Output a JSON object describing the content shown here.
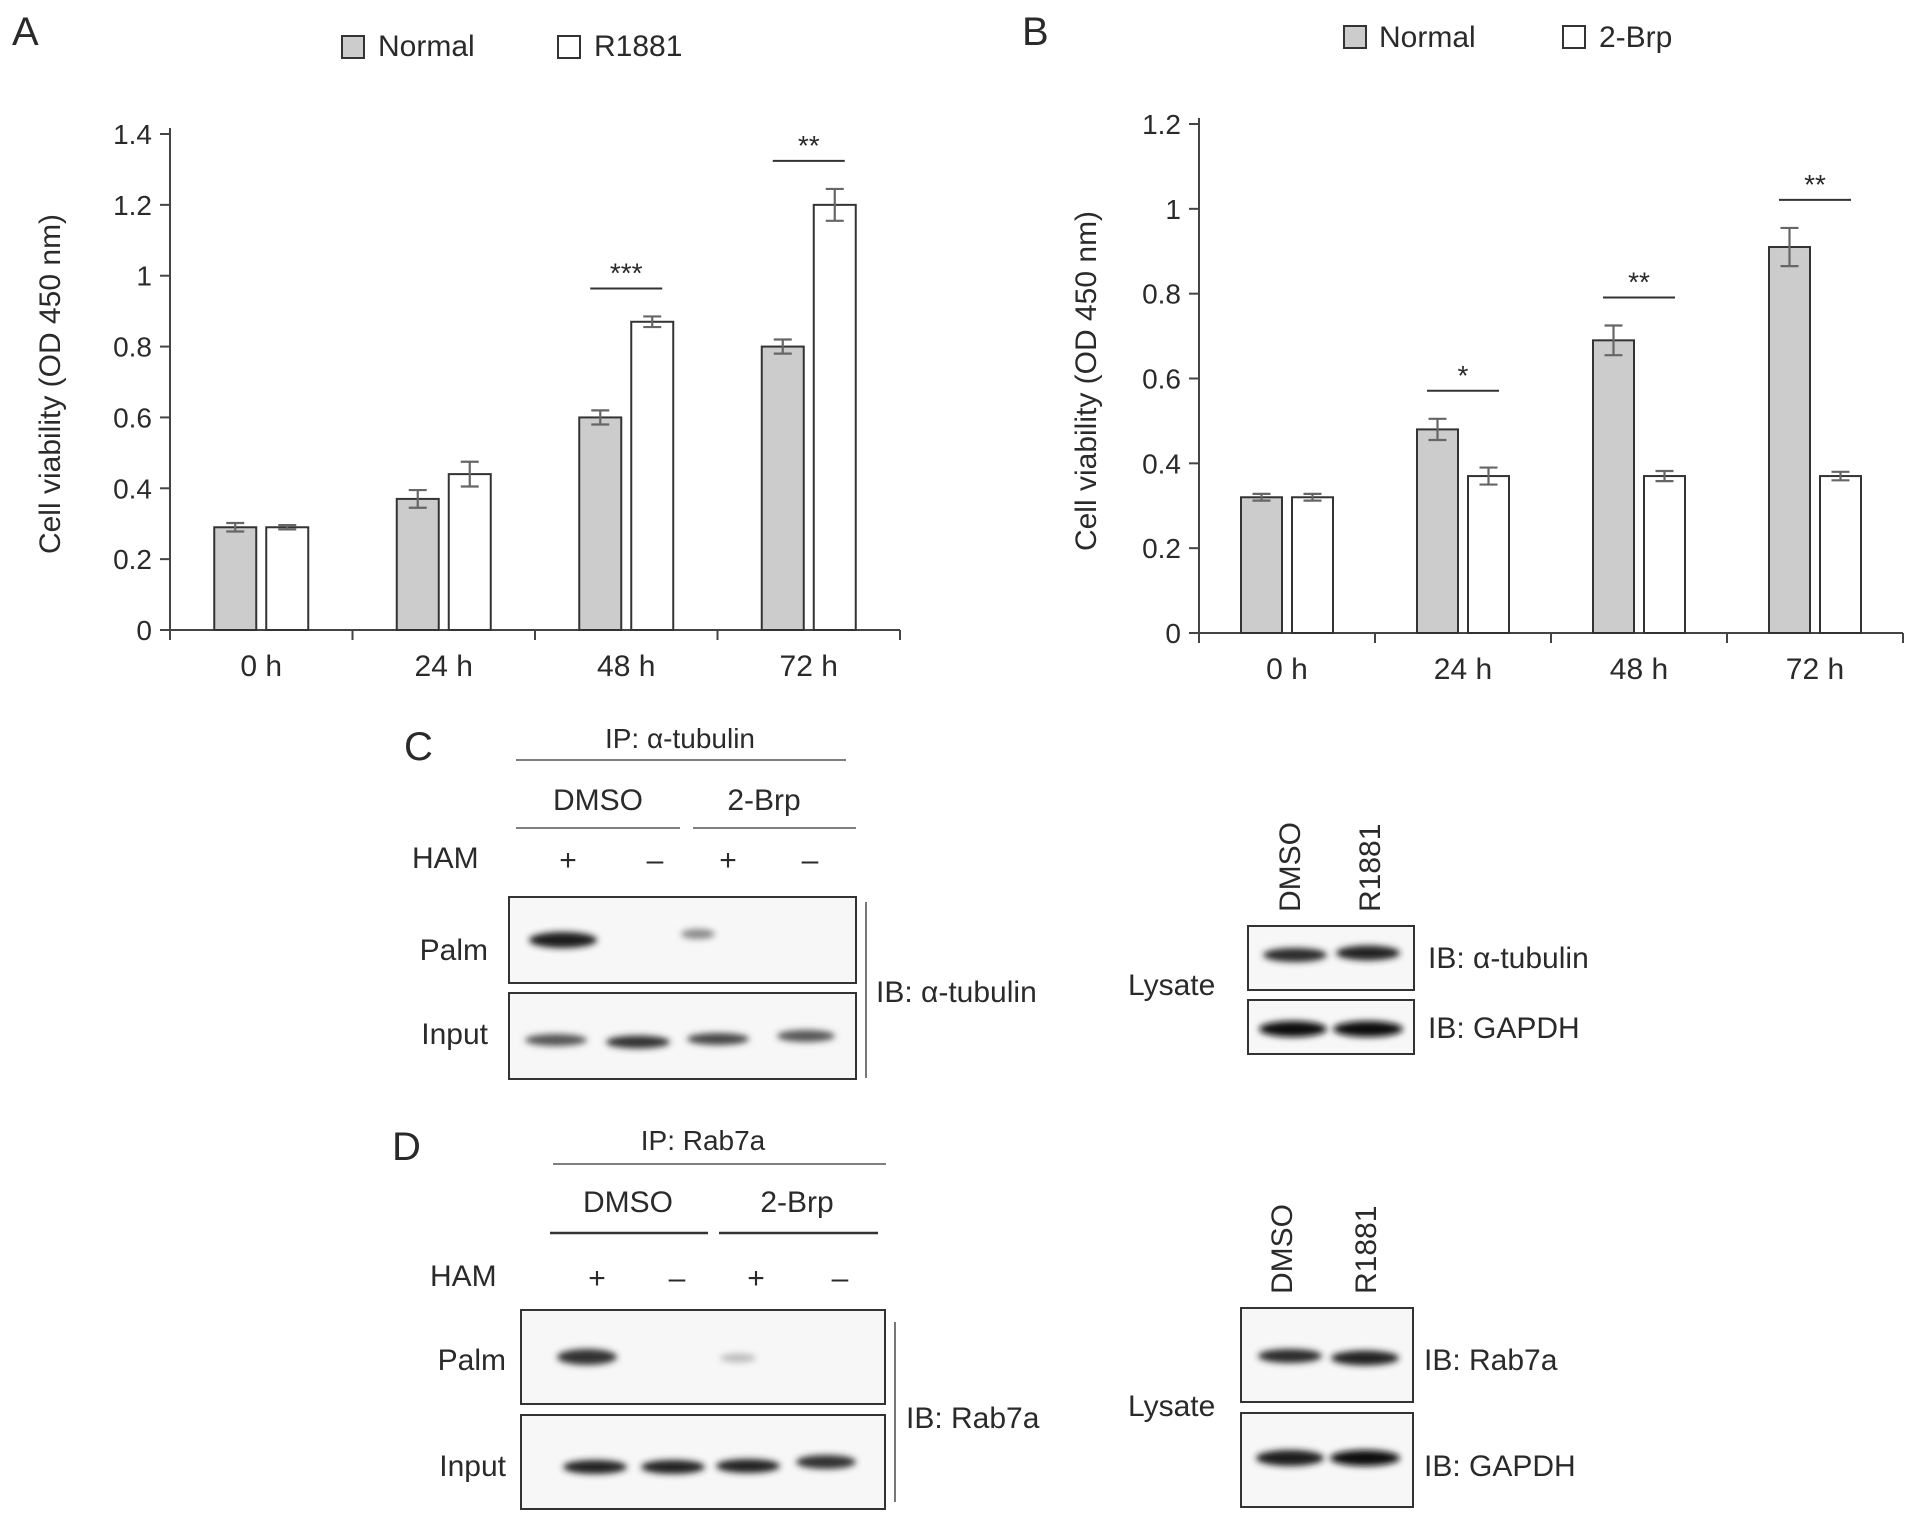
{
  "chart_data": [
    {
      "panel": "A",
      "type": "bar",
      "ylabel": "Cell viability (OD 450 nm)",
      "xlabel": "",
      "ylim": [
        0,
        1.4
      ],
      "yticks": [
        "0",
        "0.2",
        "0.4",
        "0.6",
        "0.8",
        "1",
        "1.2",
        "1.4"
      ],
      "categories": [
        "0 h",
        "24 h",
        "48 h",
        "72 h"
      ],
      "series": [
        {
          "name": "Normal",
          "color": "#cccccc",
          "values": [
            0.29,
            0.37,
            0.6,
            0.8
          ],
          "errors": [
            0.012,
            0.025,
            0.02,
            0.02
          ]
        },
        {
          "name": "R1881",
          "color": "#ffffff",
          "values": [
            0.29,
            0.44,
            0.87,
            1.2
          ],
          "errors": [
            0.006,
            0.035,
            0.015,
            0.045
          ]
        }
      ],
      "significance": [
        {
          "category": "48 h",
          "label": "***"
        },
        {
          "category": "72 h",
          "label": "**"
        }
      ],
      "legend_position": "top"
    },
    {
      "panel": "B",
      "type": "bar",
      "ylabel": "Cell viability (OD 450 nm)",
      "xlabel": "",
      "ylim": [
        0,
        1.2
      ],
      "yticks": [
        "0",
        "0.2",
        "0.4",
        "0.6",
        "0.8",
        "1",
        "1.2"
      ],
      "categories": [
        "0 h",
        "24 h",
        "48 h",
        "72 h"
      ],
      "series": [
        {
          "name": "Normal",
          "color": "#cccccc",
          "values": [
            0.32,
            0.48,
            0.69,
            0.91
          ],
          "errors": [
            0.008,
            0.025,
            0.035,
            0.045
          ]
        },
        {
          "name": "2-Brp",
          "color": "#ffffff",
          "values": [
            0.32,
            0.37,
            0.37,
            0.37
          ],
          "errors": [
            0.008,
            0.02,
            0.012,
            0.01
          ]
        }
      ],
      "significance": [
        {
          "category": "24 h",
          "label": "*"
        },
        {
          "category": "48 h",
          "label": "**"
        },
        {
          "category": "72 h",
          "label": "**"
        }
      ],
      "legend_position": "top"
    }
  ],
  "panel_labels": {
    "a": "A",
    "b": "B",
    "c": "C",
    "d": "D"
  },
  "blot_c": {
    "ip_label": "IP: α-tubulin",
    "groups": [
      "DMSO",
      "2-Brp"
    ],
    "row_label": "HAM",
    "signs": [
      "+",
      "–",
      "+",
      "–"
    ],
    "rows": [
      "Palm",
      "Input"
    ],
    "ib_label": "IB: α-tubulin",
    "lysate": {
      "label": "Lysate",
      "lanes": [
        "DMSO",
        "R1881"
      ],
      "ibs": [
        "IB: α-tubulin",
        "IB: GAPDH"
      ]
    }
  },
  "blot_d": {
    "ip_label": "IP: Rab7a",
    "groups": [
      "DMSO",
      "2-Brp"
    ],
    "row_label": "HAM",
    "signs": [
      "+",
      "–",
      "+",
      "–"
    ],
    "rows": [
      "Palm",
      "Input"
    ],
    "ib_label": "IB: Rab7a",
    "lysate": {
      "label": "Lysate",
      "lanes": [
        "DMSO",
        "R1881"
      ],
      "ibs": [
        "IB: Rab7a",
        "IB: GAPDH"
      ]
    }
  }
}
